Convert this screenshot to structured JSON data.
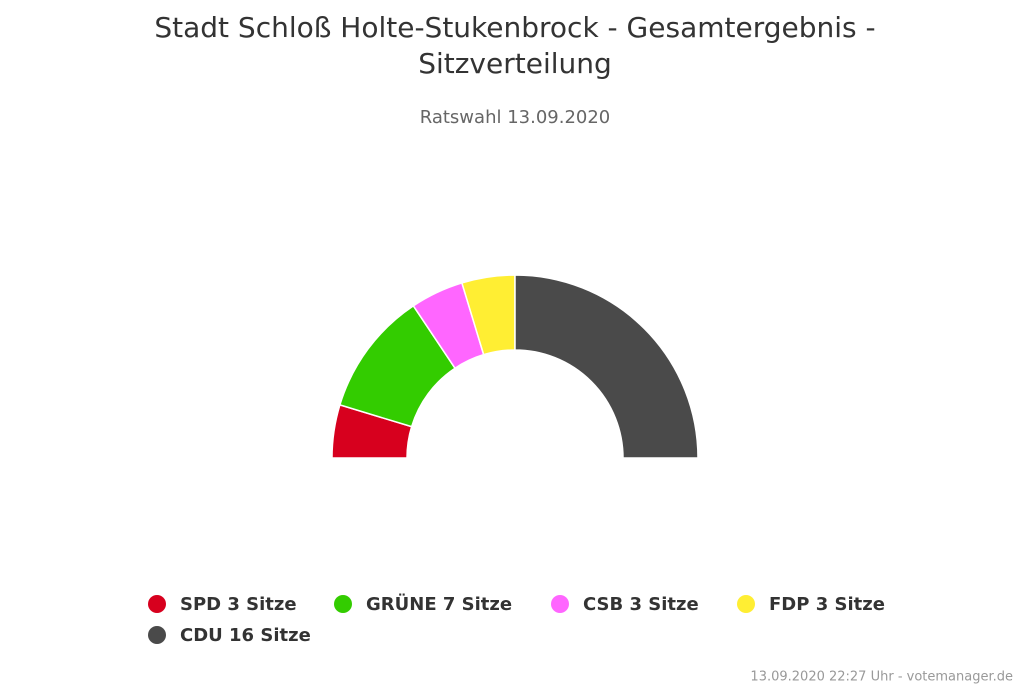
{
  "chart_data": {
    "type": "parliament",
    "title": "Stadt Schloß Holte-Stukenbrock - Gesamtergebnis - Sitzverteilung",
    "subtitle": "Ratswahl 13.09.2020",
    "categories": [
      "SPD 3 Sitze",
      "GRÜNE 7 Sitze",
      "CSB 3 Sitze",
      "FDP 3 Sitze",
      "CDU 16 Sitze"
    ],
    "values": [
      3,
      7,
      3,
      3,
      16
    ],
    "colors": [
      "#d7001e",
      "#33cc00",
      "#ff66ff",
      "#ffee33",
      "#4a4a4a"
    ],
    "credits": "13.09.2020 22:27 Uhr - votemanager.de"
  }
}
